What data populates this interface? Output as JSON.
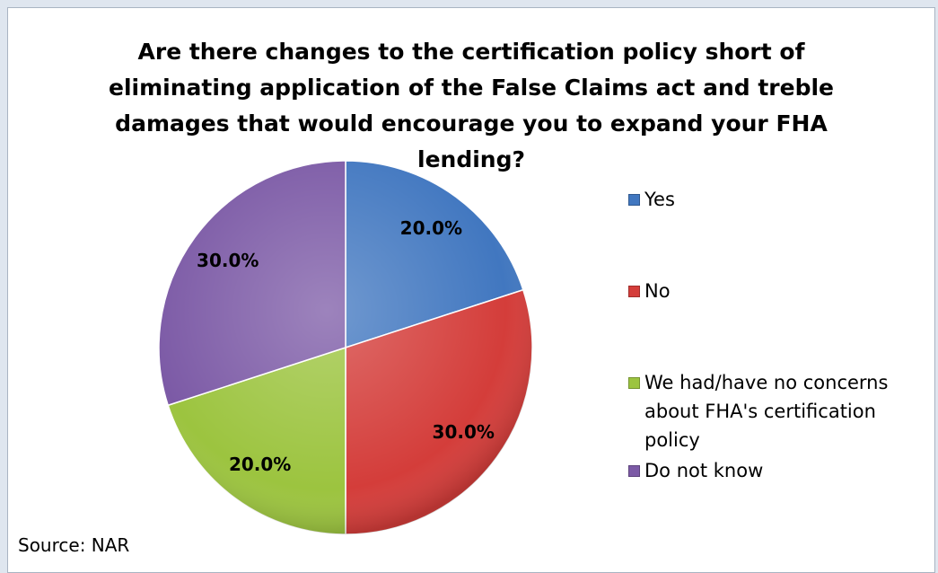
{
  "chart_data": {
    "type": "pie",
    "title": "Are there changes to the certification policy short of eliminating application of the False Claims act and treble damages that would encourage you to expand your FHA lending?",
    "categories": [
      "Yes",
      "No",
      "We had/have no concerns about FHA's certification policy",
      "Do not know"
    ],
    "values": [
      20,
      30,
      20,
      30
    ],
    "value_labels": [
      "20.0%",
      "30.0%",
      "20.0%",
      "30.0%"
    ],
    "colors": [
      "#4177c0",
      "#d43d3a",
      "#9cc43f",
      "#7c5aa6"
    ],
    "legend": "right",
    "source": "Source: NAR"
  }
}
